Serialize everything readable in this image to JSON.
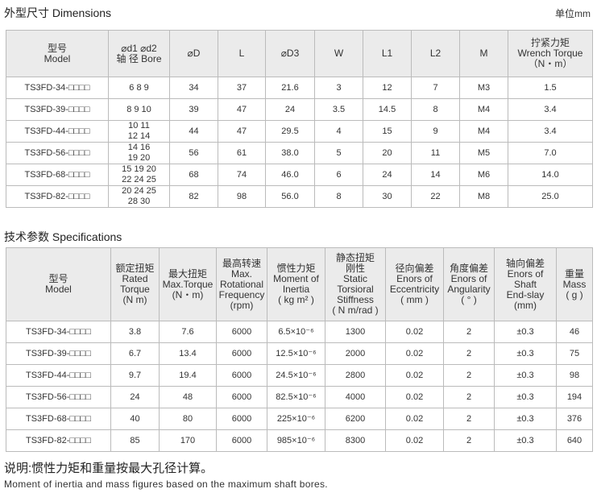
{
  "dimensions": {
    "title": "外型尺寸 Dimensions",
    "unit": "单位mm",
    "headers": [
      "型号\nModel",
      "⌀d1 ⌀d2\n轴 径 Bore",
      "⌀D",
      "L",
      "⌀D3",
      "W",
      "L1",
      "L2",
      "M",
      "拧紧力矩\nWrench Torque\n（N・m）"
    ],
    "rows": [
      [
        "TS3FD-34-□□□□",
        "6 8 9",
        "34",
        "37",
        "21.6",
        "3",
        "12",
        "7",
        "M3",
        "1.5"
      ],
      [
        "TS3FD-39-□□□□",
        "8 9 10",
        "39",
        "47",
        "24",
        "3.5",
        "14.5",
        "8",
        "M4",
        "3.4"
      ],
      [
        "TS3FD-44-□□□□",
        "10 11\n12 14",
        "44",
        "47",
        "29.5",
        "4",
        "15",
        "9",
        "M4",
        "3.4"
      ],
      [
        "TS3FD-56-□□□□",
        "14 16\n19 20",
        "56",
        "61",
        "38.0",
        "5",
        "20",
        "11",
        "M5",
        "7.0"
      ],
      [
        "TS3FD-68-□□□□",
        "15 19 20\n22 24 25",
        "68",
        "74",
        "46.0",
        "6",
        "24",
        "14",
        "M6",
        "14.0"
      ],
      [
        "TS3FD-82-□□□□",
        "20 24 25\n28 30",
        "82",
        "98",
        "56.0",
        "8",
        "30",
        "22",
        "M8",
        "25.0"
      ]
    ]
  },
  "specifications": {
    "title": "技术参数 Specifications",
    "headers": [
      "型号\nModel",
      "额定扭矩\nRated\nTorque\n(N m)",
      "最大扭矩\nMax.Torque\n(N・m)",
      "最高转速\nMax.\nRotational\nFrequency\n(rpm)",
      "惯性力矩\nMoment of\nInertia\n( kg m² )",
      "静态扭矩\n刚性\nStatic\nTorsioral\nStiffness\n( N m/rad )",
      "径向偏差\nEnors of\nEccentricity\n( mm )",
      "角度偏差\nEnors of\nAngularity\n( ° )",
      "轴向偏差\nEnors of Shaft\nEnd-slay\n(mm)",
      "重量\nMass\n( g )"
    ],
    "rows": [
      [
        "TS3FD-34-□□□□",
        "3.8",
        "7.6",
        "6000",
        "6.5×10⁻⁶",
        "1300",
        "0.02",
        "2",
        "±0.3",
        "46"
      ],
      [
        "TS3FD-39-□□□□",
        "6.7",
        "13.4",
        "6000",
        "12.5×10⁻⁶",
        "2000",
        "0.02",
        "2",
        "±0.3",
        "75"
      ],
      [
        "TS3FD-44-□□□□",
        "9.7",
        "19.4",
        "6000",
        "24.5×10⁻⁶",
        "2800",
        "0.02",
        "2",
        "±0.3",
        "98"
      ],
      [
        "TS3FD-56-□□□□",
        "24",
        "48",
        "6000",
        "82.5×10⁻⁶",
        "4000",
        "0.02",
        "2",
        "±0.3",
        "194"
      ],
      [
        "TS3FD-68-□□□□",
        "40",
        "80",
        "6000",
        "225×10⁻⁶",
        "6200",
        "0.02",
        "2",
        "±0.3",
        "376"
      ],
      [
        "TS3FD-82-□□□□",
        "85",
        "170",
        "6000",
        "985×10⁻⁶",
        "8300",
        "0.02",
        "2",
        "±0.3",
        "640"
      ]
    ]
  },
  "footer": {
    "note_cn": "说明:惯性力矩和重量按最大孔径计算。",
    "note_en": "Moment of inertia and mass figures based on the maximum shaft bores."
  }
}
